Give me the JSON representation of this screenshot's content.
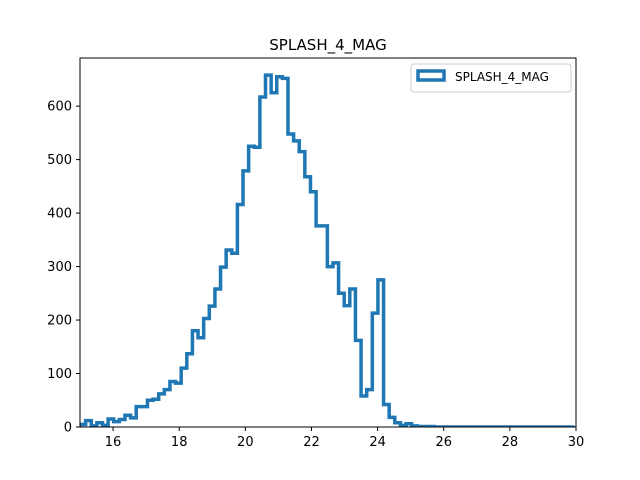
{
  "chart_data": {
    "type": "histogram",
    "title": "SPLASH_4_MAG",
    "xlabel": "",
    "ylabel": "",
    "xlim": [
      15,
      30
    ],
    "ylim": [
      0,
      690
    ],
    "xticks": [
      16,
      18,
      20,
      22,
      24,
      26,
      28,
      30
    ],
    "yticks": [
      0,
      100,
      200,
      300,
      400,
      500,
      600
    ],
    "grid": false,
    "legend_position": "upper-right",
    "series": [
      {
        "name": "SPLASH_4_MAG",
        "color": "#1f77b4",
        "histtype": "step",
        "bin_start": 15.0,
        "bin_width": 0.17,
        "counts": [
          5,
          12,
          2,
          8,
          3,
          15,
          10,
          14,
          22,
          17,
          38,
          38,
          50,
          52,
          62,
          70,
          85,
          82,
          110,
          137,
          180,
          167,
          203,
          226,
          258,
          299,
          331,
          325,
          416,
          479,
          525,
          523,
          617,
          658,
          625,
          655,
          652,
          548,
          535,
          515,
          468,
          440,
          376,
          376,
          300,
          307,
          250,
          227,
          258,
          162,
          58,
          70,
          213,
          275,
          42,
          18,
          8,
          3,
          6,
          2,
          1,
          1,
          1,
          0,
          0,
          0,
          0,
          0,
          0,
          0,
          0,
          0,
          0,
          0,
          0,
          0,
          0,
          0,
          0,
          0,
          0,
          0,
          0,
          0,
          0,
          0,
          0,
          0
        ]
      }
    ]
  }
}
